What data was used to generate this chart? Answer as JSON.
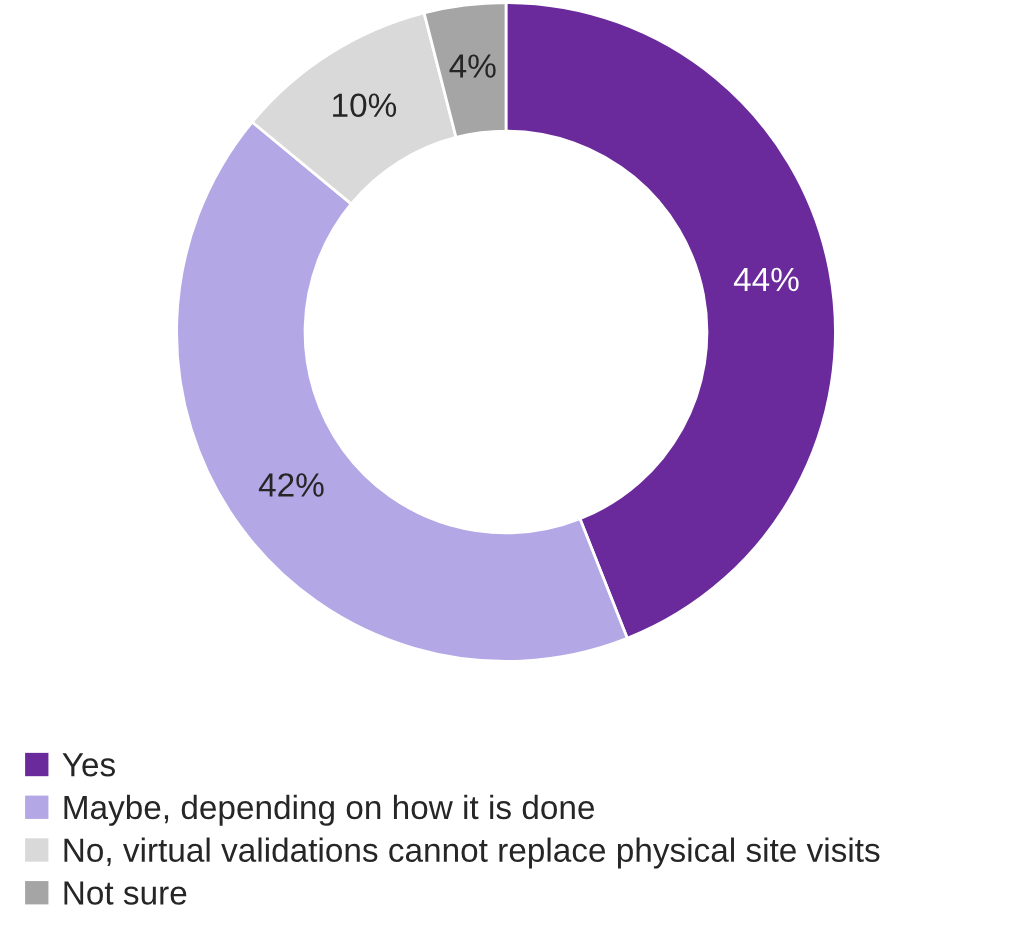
{
  "chart_data": {
    "type": "donut",
    "categories": [
      "Yes",
      "Maybe, depending on how it is done",
      "No, virtual validations cannot replace physical site visits",
      "Not sure"
    ],
    "values": [
      44,
      42,
      10,
      4
    ],
    "value_labels": [
      "44%",
      "42%",
      "10%",
      "4%"
    ],
    "colors": [
      "#6b2a9b",
      "#b4a7e6",
      "#d9d9d9",
      "#a5a5a5"
    ],
    "legend": "bottom left"
  }
}
